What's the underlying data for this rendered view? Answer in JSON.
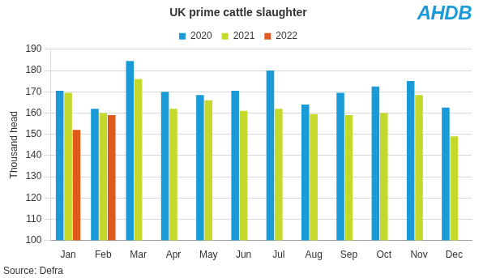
{
  "chart_data": {
    "type": "bar",
    "title": "UK prime cattle slaughter",
    "y_label": "Thousand head",
    "source": "Source: Defra",
    "logo": "AHDB",
    "categories": [
      "Jan",
      "Feb",
      "Mar",
      "Apr",
      "May",
      "Jun",
      "Jul",
      "Aug",
      "Sep",
      "Oct",
      "Nov",
      "Dec"
    ],
    "series": [
      {
        "name": "2020",
        "color": "#1a9bd7",
        "values": [
          170.5,
          162,
          184.5,
          170,
          168.5,
          170.5,
          180,
          164,
          169.5,
          172.5,
          175,
          162.5
        ]
      },
      {
        "name": "2021",
        "color": "#c5d92d",
        "values": [
          169.5,
          160,
          176,
          162,
          166,
          161,
          162,
          159.5,
          159,
          160,
          168.5,
          149
        ]
      },
      {
        "name": "2022",
        "color": "#e05a1c",
        "values": [
          152,
          159,
          null,
          null,
          null,
          null,
          null,
          null,
          null,
          null,
          null,
          null
        ]
      }
    ],
    "ylim": [
      100,
      190
    ],
    "yticks": [
      100,
      110,
      120,
      130,
      140,
      150,
      160,
      170,
      180,
      190
    ],
    "grid": true,
    "legend": "top"
  }
}
